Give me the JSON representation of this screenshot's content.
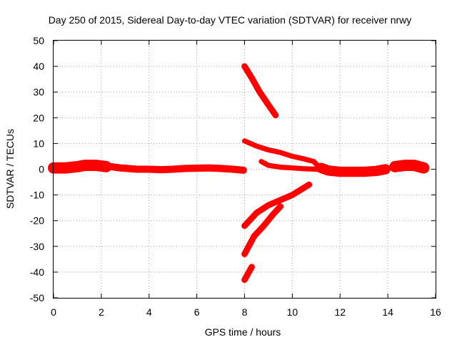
{
  "chart_data": {
    "type": "scatter",
    "title": "Day 250 of 2015, Sidereal Day-to-day VTEC variation (SDTVAR) for receiver nrwy",
    "xlabel": "GPS time / hours",
    "ylabel": "SDTVAR / TECUs",
    "xlim": [
      0,
      16
    ],
    "ylim": [
      -50,
      50
    ],
    "xticks": [
      "0",
      "2",
      "4",
      "6",
      "8",
      "10",
      "12",
      "14",
      "16"
    ],
    "yticks": [
      "-50",
      "-40",
      "-30",
      "-20",
      "-10",
      "0",
      "10",
      "20",
      "30",
      "40",
      "50"
    ],
    "grid": true,
    "color": "#ff0000",
    "series": [
      {
        "x": [
          0.0,
          0.5,
          1.0,
          1.3,
          1.8,
          2.2
        ],
        "y": [
          0.5,
          0.5,
          1.0,
          1.5,
          1.5,
          1.0
        ],
        "spread": 2.2
      },
      {
        "x": [
          2.4,
          2.8,
          3.5,
          4.0,
          4.5,
          5.0,
          5.5,
          6.0,
          6.5,
          7.0,
          7.5,
          7.95
        ],
        "y": [
          1.0,
          0.5,
          0.0,
          0.0,
          -0.2,
          0.0,
          0.3,
          0.4,
          0.5,
          0.3,
          0.0,
          -0.4
        ],
        "spread": 1.4
      },
      {
        "x": [
          8.0,
          8.3,
          8.6,
          9.0,
          9.3
        ],
        "y": [
          40.0,
          35.5,
          30.5,
          25.0,
          21.0
        ],
        "spread": 1.2
      },
      {
        "x": [
          8.0,
          8.5,
          9.0,
          9.5,
          10.0,
          10.5,
          10.9,
          11.1
        ],
        "y": [
          11.0,
          9.0,
          7.5,
          6.5,
          5.0,
          4.0,
          3.0,
          1.0
        ],
        "spread": 1.0
      },
      {
        "x": [
          8.7,
          9.0,
          9.5,
          10.0,
          10.5,
          11.0,
          11.5
        ],
        "y": [
          3.0,
          1.5,
          0.8,
          0.5,
          0.2,
          0.0,
          -0.5
        ],
        "spread": 1.0
      },
      {
        "x": [
          11.2,
          11.5,
          12.0,
          12.5,
          13.0,
          13.5,
          13.9
        ],
        "y": [
          0.5,
          -0.5,
          -1.0,
          -1.0,
          -1.0,
          -0.7,
          0.0
        ],
        "spread": 2.0
      },
      {
        "x": [
          14.3,
          14.7,
          15.1,
          15.5
        ],
        "y": [
          1.0,
          1.5,
          1.5,
          0.5
        ],
        "spread": 2.2
      },
      {
        "x": [
          8.0,
          8.5,
          9.0,
          9.5,
          10.0,
          10.7
        ],
        "y": [
          -22.0,
          -17.0,
          -14.0,
          -12.0,
          -10.0,
          -6.0
        ],
        "spread": 1.2
      },
      {
        "x": [
          8.0,
          8.4,
          8.8,
          9.2,
          9.5
        ],
        "y": [
          -33.0,
          -26.0,
          -22.0,
          -17.5,
          -14.5
        ],
        "spread": 1.2
      },
      {
        "x": [
          8.0,
          8.15,
          8.3
        ],
        "y": [
          -43.0,
          -40.5,
          -38.0
        ],
        "spread": 1.2
      }
    ]
  }
}
